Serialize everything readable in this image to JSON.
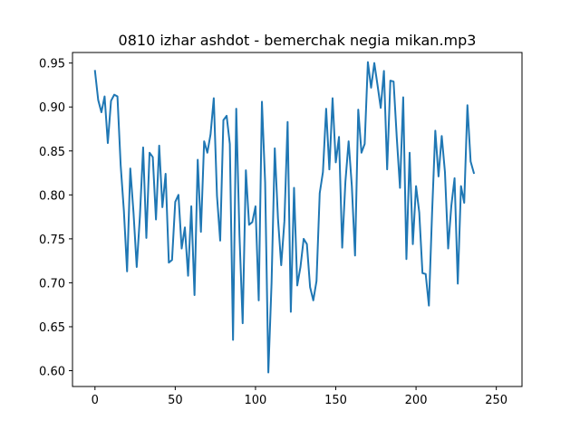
{
  "chart_data": {
    "type": "line",
    "title": "0810 izhar ashdot - bemerchak negia mikan.mp3",
    "xlabel": "",
    "ylabel": "",
    "xlim": [
      -14,
      266
    ],
    "ylim": [
      0.582,
      0.962
    ],
    "x_ticks": [
      0,
      50,
      100,
      150,
      200,
      250
    ],
    "y_ticks": [
      0.6,
      0.65,
      0.7,
      0.75,
      0.8,
      0.85,
      0.9,
      0.95
    ],
    "x_tick_labels": [
      "0",
      "50",
      "100",
      "150",
      "200",
      "250"
    ],
    "y_tick_labels": [
      "0.60",
      "0.65",
      "0.70",
      "0.75",
      "0.80",
      "0.85",
      "0.90",
      "0.95"
    ],
    "grid": false,
    "legend": false,
    "series": [
      {
        "color": "#1f77b4",
        "points": [
          [
            0,
            0.941
          ],
          [
            2,
            0.908
          ],
          [
            4,
            0.894
          ],
          [
            6,
            0.912
          ],
          [
            8,
            0.859
          ],
          [
            10,
            0.907
          ],
          [
            12,
            0.914
          ],
          [
            14,
            0.912
          ],
          [
            16,
            0.834
          ],
          [
            18,
            0.782
          ],
          [
            20,
            0.713
          ],
          [
            22,
            0.83
          ],
          [
            24,
            0.78
          ],
          [
            26,
            0.718
          ],
          [
            28,
            0.776
          ],
          [
            30,
            0.854
          ],
          [
            32,
            0.751
          ],
          [
            34,
            0.848
          ],
          [
            36,
            0.843
          ],
          [
            38,
            0.772
          ],
          [
            40,
            0.856
          ],
          [
            42,
            0.786
          ],
          [
            44,
            0.824
          ],
          [
            46,
            0.723
          ],
          [
            48,
            0.726
          ],
          [
            50,
            0.792
          ],
          [
            52,
            0.8
          ],
          [
            54,
            0.739
          ],
          [
            56,
            0.763
          ],
          [
            58,
            0.708
          ],
          [
            60,
            0.787
          ],
          [
            62,
            0.686
          ],
          [
            64,
            0.84
          ],
          [
            66,
            0.758
          ],
          [
            68,
            0.861
          ],
          [
            70,
            0.848
          ],
          [
            72,
            0.869
          ],
          [
            74,
            0.91
          ],
          [
            76,
            0.799
          ],
          [
            78,
            0.748
          ],
          [
            80,
            0.885
          ],
          [
            82,
            0.89
          ],
          [
            84,
            0.858
          ],
          [
            86,
            0.635
          ],
          [
            88,
            0.898
          ],
          [
            90,
            0.755
          ],
          [
            92,
            0.654
          ],
          [
            94,
            0.828
          ],
          [
            96,
            0.766
          ],
          [
            98,
            0.769
          ],
          [
            100,
            0.787
          ],
          [
            102,
            0.68
          ],
          [
            104,
            0.906
          ],
          [
            106,
            0.814
          ],
          [
            108,
            0.598
          ],
          [
            110,
            0.7
          ],
          [
            112,
            0.853
          ],
          [
            114,
            0.773
          ],
          [
            116,
            0.72
          ],
          [
            118,
            0.77
          ],
          [
            120,
            0.883
          ],
          [
            122,
            0.667
          ],
          [
            124,
            0.808
          ],
          [
            126,
            0.697
          ],
          [
            128,
            0.718
          ],
          [
            130,
            0.75
          ],
          [
            132,
            0.744
          ],
          [
            134,
            0.695
          ],
          [
            136,
            0.68
          ],
          [
            138,
            0.702
          ],
          [
            140,
            0.802
          ],
          [
            142,
            0.826
          ],
          [
            144,
            0.898
          ],
          [
            146,
            0.829
          ],
          [
            148,
            0.91
          ],
          [
            150,
            0.837
          ],
          [
            152,
            0.866
          ],
          [
            154,
            0.74
          ],
          [
            156,
            0.815
          ],
          [
            158,
            0.861
          ],
          [
            160,
            0.81
          ],
          [
            162,
            0.731
          ],
          [
            164,
            0.897
          ],
          [
            166,
            0.848
          ],
          [
            168,
            0.858
          ],
          [
            170,
            0.951
          ],
          [
            172,
            0.922
          ],
          [
            174,
            0.95
          ],
          [
            176,
            0.925
          ],
          [
            178,
            0.899
          ],
          [
            180,
            0.941
          ],
          [
            182,
            0.829
          ],
          [
            184,
            0.93
          ],
          [
            186,
            0.929
          ],
          [
            188,
            0.865
          ],
          [
            190,
            0.808
          ],
          [
            192,
            0.911
          ],
          [
            194,
            0.727
          ],
          [
            196,
            0.848
          ],
          [
            198,
            0.744
          ],
          [
            200,
            0.81
          ],
          [
            202,
            0.78
          ],
          [
            204,
            0.711
          ],
          [
            206,
            0.71
          ],
          [
            208,
            0.674
          ],
          [
            210,
            0.78
          ],
          [
            212,
            0.873
          ],
          [
            214,
            0.821
          ],
          [
            216,
            0.867
          ],
          [
            218,
            0.826
          ],
          [
            220,
            0.739
          ],
          [
            222,
            0.788
          ],
          [
            224,
            0.819
          ],
          [
            226,
            0.699
          ],
          [
            228,
            0.81
          ],
          [
            230,
            0.791
          ],
          [
            232,
            0.902
          ],
          [
            234,
            0.838
          ],
          [
            236,
            0.825
          ]
        ]
      }
    ]
  }
}
